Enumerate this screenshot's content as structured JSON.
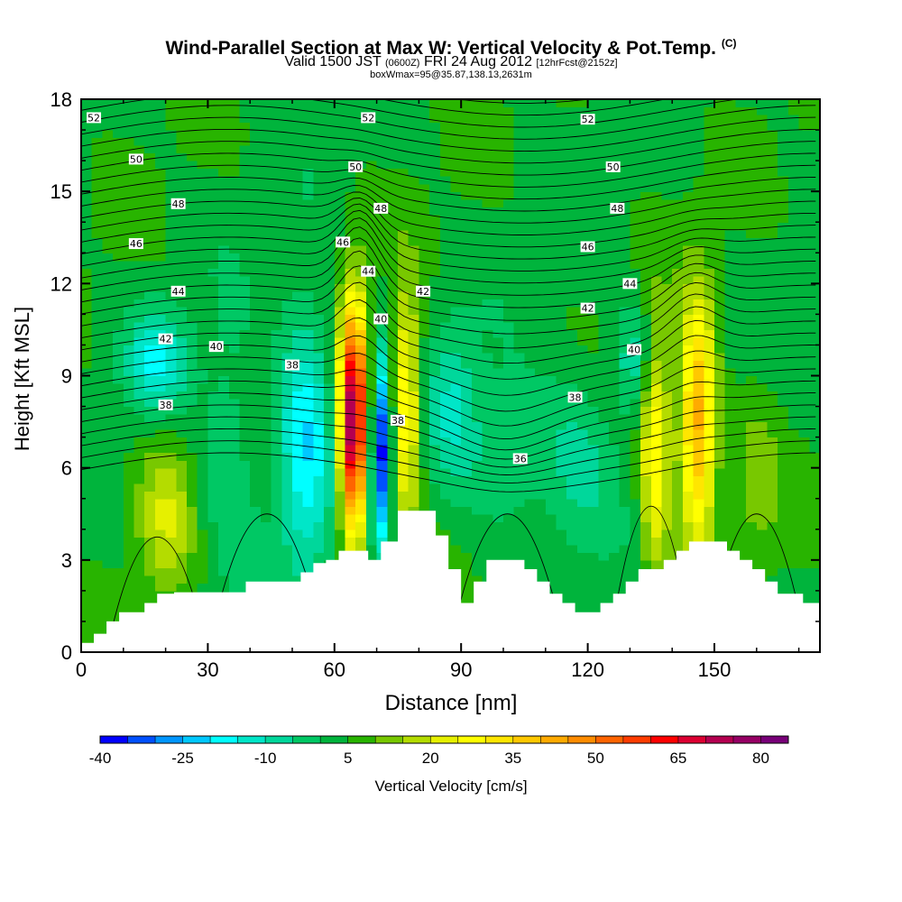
{
  "title": {
    "main": "Wind-Parallel Section at Max W: Vertical Velocity & Pot.Temp.",
    "copyright": "(C)",
    "valid_prefix": "Valid 1500 JST",
    "valid_utc": "(0600Z)",
    "valid_date": "FRI 24 Aug 2012",
    "forecast": "[12hrFcst@2152z]",
    "box": "boxWmax=95@35.87,138.13,2631m"
  },
  "chart_data": {
    "type": "heatmap",
    "xlabel": "Distance [nm]",
    "ylabel": "Height [Kft MSL]",
    "xlim": [
      0,
      175
    ],
    "ylim": [
      0,
      18
    ],
    "xticks": [
      0,
      30,
      60,
      90,
      120,
      150
    ],
    "yticks": [
      0,
      3,
      6,
      9,
      12,
      15,
      18
    ],
    "colorbar": {
      "label": "Vertical Velocity [cm/s]",
      "range": [
        -40,
        85
      ],
      "tick_labels": [
        -40,
        -25,
        -10,
        5,
        20,
        35,
        50,
        65,
        80
      ],
      "colors": [
        "#0000ff",
        "#0050ff",
        "#0096ff",
        "#00c8ff",
        "#00ffff",
        "#00e6c8",
        "#00d79b",
        "#00c864",
        "#00b43c",
        "#28b400",
        "#78c800",
        "#b4dc00",
        "#e6f000",
        "#ffff00",
        "#ffe600",
        "#ffc800",
        "#ffaa00",
        "#ff8c00",
        "#ff6400",
        "#ff3c00",
        "#ff0000",
        "#dc0032",
        "#b40050",
        "#960064",
        "#780078"
      ]
    },
    "theta_contour_labels": [
      {
        "value": 52,
        "x": 3,
        "y": 17.4
      },
      {
        "value": 52,
        "x": 68,
        "y": 17.4
      },
      {
        "value": 52,
        "x": 120,
        "y": 17.35
      },
      {
        "value": 50,
        "x": 13,
        "y": 16.05
      },
      {
        "value": 50,
        "x": 65,
        "y": 15.8
      },
      {
        "value": 50,
        "x": 126,
        "y": 15.8
      },
      {
        "value": 48,
        "x": 23,
        "y": 14.6
      },
      {
        "value": 48,
        "x": 71,
        "y": 14.45
      },
      {
        "value": 48,
        "x": 127,
        "y": 14.45
      },
      {
        "value": 46,
        "x": 13,
        "y": 13.3
      },
      {
        "value": 46,
        "x": 62,
        "y": 13.35
      },
      {
        "value": 46,
        "x": 120,
        "y": 13.2
      },
      {
        "value": 44,
        "x": 23,
        "y": 11.75
      },
      {
        "value": 44,
        "x": 68,
        "y": 12.4
      },
      {
        "value": 44,
        "x": 130,
        "y": 12.0
      },
      {
        "value": 42,
        "x": 20,
        "y": 10.2
      },
      {
        "value": 42,
        "x": 81,
        "y": 11.75
      },
      {
        "value": 42,
        "x": 120,
        "y": 11.2
      },
      {
        "value": 40,
        "x": 32,
        "y": 9.95
      },
      {
        "value": 40,
        "x": 71,
        "y": 10.85
      },
      {
        "value": 40,
        "x": 131,
        "y": 9.85
      },
      {
        "value": 38,
        "x": 20,
        "y": 8.05
      },
      {
        "value": 38,
        "x": 50,
        "y": 9.35
      },
      {
        "value": 38,
        "x": 75,
        "y": 7.55
      },
      {
        "value": 38,
        "x": 117,
        "y": 8.3
      },
      {
        "value": 36,
        "x": 104,
        "y": 6.3
      }
    ],
    "terrain_steps": [
      [
        0,
        0.3
      ],
      [
        3,
        0.6
      ],
      [
        6,
        1.0
      ],
      [
        9,
        1.3
      ],
      [
        15,
        1.6
      ],
      [
        18,
        1.9
      ],
      [
        22,
        1.95
      ],
      [
        39,
        2.3
      ],
      [
        52,
        2.6
      ],
      [
        55,
        2.9
      ],
      [
        58,
        3.0
      ],
      [
        61,
        3.3
      ],
      [
        64,
        3.3
      ],
      [
        68,
        3.0
      ],
      [
        71,
        3.6
      ],
      [
        75,
        4.6
      ],
      [
        84,
        3.8
      ],
      [
        87,
        2.7
      ],
      [
        90,
        1.6
      ],
      [
        93,
        2.3
      ],
      [
        96,
        3.0
      ],
      [
        105,
        2.7
      ],
      [
        108,
        2.3
      ],
      [
        111,
        1.9
      ],
      [
        114,
        1.6
      ],
      [
        117,
        1.3
      ],
      [
        123,
        1.6
      ],
      [
        126,
        1.9
      ],
      [
        129,
        2.3
      ],
      [
        132,
        2.7
      ],
      [
        138,
        3.0
      ],
      [
        141,
        3.3
      ],
      [
        144,
        3.6
      ],
      [
        153,
        3.3
      ],
      [
        156,
        3.0
      ],
      [
        159,
        2.7
      ],
      [
        162,
        2.3
      ],
      [
        165,
        1.9
      ],
      [
        171,
        1.6
      ],
      [
        175,
        1.6
      ]
    ],
    "w_features": [
      {
        "x": 64.5,
        "y": 7.5,
        "w_max": 75,
        "sign": "updraft"
      },
      {
        "x": 71,
        "y": 6.5,
        "w_min": -35,
        "sign": "downdraft"
      },
      {
        "x": 77,
        "y": 8.0,
        "w_max": 32,
        "sign": "updraft"
      },
      {
        "x": 53,
        "y": 7.0,
        "w_min": -22,
        "sign": "downdraft"
      },
      {
        "x": 146,
        "y": 7.5,
        "w_max": 45,
        "sign": "updraft"
      },
      {
        "x": 136,
        "y": 6.5,
        "w_max": 32,
        "sign": "updraft"
      },
      {
        "x": 20,
        "y": 4.5,
        "w_max": 18,
        "sign": "updraft"
      },
      {
        "x": 18,
        "y": 9.5,
        "w_min": -15,
        "sign": "downdraft"
      },
      {
        "x": 101,
        "y": 6.5,
        "w_min": -8,
        "sign": "downdraft"
      }
    ]
  }
}
